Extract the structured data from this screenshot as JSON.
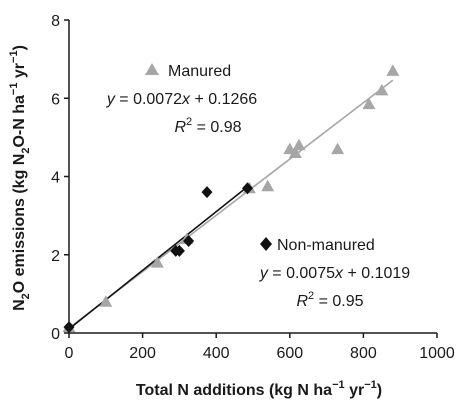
{
  "chart_data": {
    "type": "scatter",
    "xlim": [
      0,
      1000
    ],
    "ylim": [
      0,
      8
    ],
    "x_ticks": [
      "0",
      "200",
      "400",
      "600",
      "800",
      "1000"
    ],
    "y_ticks": [
      "0",
      "2",
      "4",
      "6",
      "8"
    ],
    "xlabel": {
      "pre": "Total N additions (kg N ha",
      "sup1": "−1",
      "mid": " yr",
      "sup2": "−1",
      "post": ")"
    },
    "ylabel": {
      "p1": "N",
      "sub1": "2",
      "p2": "O emissions (kg N",
      "sub2": "2",
      "p3": "O-N ha",
      "sup1": "−1",
      "p4": " yr",
      "sup2": "−1",
      "p5": ")"
    },
    "grid": false,
    "series": [
      {
        "name": "Manured",
        "marker": "triangle",
        "color": "#a6a6a6",
        "line_color": "#a6a6a6",
        "equation": "y = 0.0072x + 0.1266",
        "eq_lhs": "y",
        "eq_mid": " = 0.0072",
        "eq_var": "x",
        "eq_rhs": " + 0.1266",
        "r2_value": " = 0.98",
        "fit": {
          "slope": 0.0072,
          "intercept": 0.1266,
          "x_range": [
            0,
            880
          ]
        },
        "points": [
          [
            0,
            0.15
          ],
          [
            100,
            0.8
          ],
          [
            240,
            1.8
          ],
          [
            320,
            2.4
          ],
          [
            490,
            3.7
          ],
          [
            540,
            3.75
          ],
          [
            600,
            4.7
          ],
          [
            615,
            4.6
          ],
          [
            625,
            4.8
          ],
          [
            730,
            4.7
          ],
          [
            815,
            5.85
          ],
          [
            850,
            6.2
          ],
          [
            880,
            6.7
          ]
        ]
      },
      {
        "name": "Non-manured",
        "marker": "diamond",
        "color": "#111111",
        "line_color": "#111111",
        "equation": "y = 0.0075x + 0.1019",
        "eq_lhs": "y",
        "eq_mid": " = 0.0075",
        "eq_var": "x",
        "eq_rhs": " + 0.1019",
        "r2_value": " = 0.95",
        "fit": {
          "slope": 0.0075,
          "intercept": 0.1019,
          "x_range": [
            0,
            490
          ]
        },
        "points": [
          [
            0,
            0.15
          ],
          [
            290,
            2.1
          ],
          [
            300,
            2.1
          ],
          [
            325,
            2.35
          ],
          [
            375,
            3.6
          ],
          [
            485,
            3.7
          ]
        ]
      }
    ],
    "r2_label": "R",
    "r2_sup": "2"
  }
}
